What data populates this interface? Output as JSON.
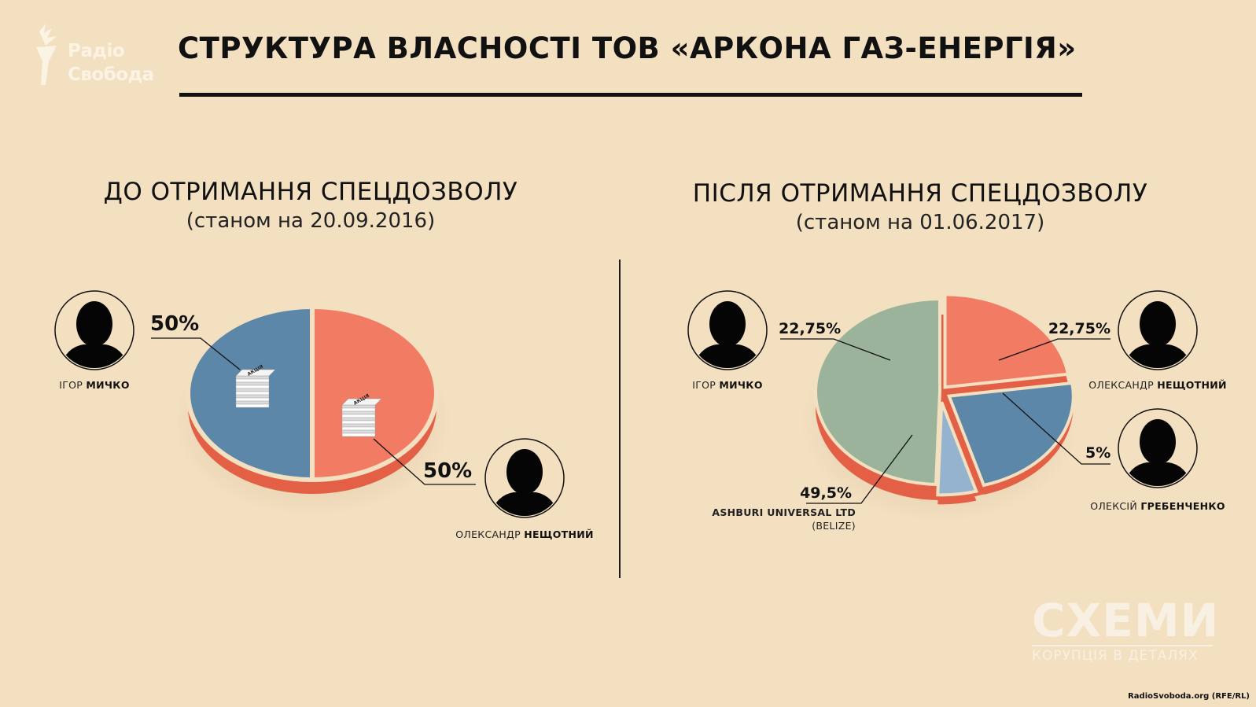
{
  "logo": {
    "line1": "Радіо",
    "line2": "Свобода"
  },
  "title": "СТРУКТУРА ВЛАСНОСТІ ТОВ «АРКОНА ГАЗ-ЕНЕРГІЯ»",
  "sections": {
    "before": {
      "title": "ДО ОТРИМАННЯ СПЕЦДОЗВОЛУ",
      "subtitle": "(станом на 20.09.2016)"
    },
    "after": {
      "title": "ПІСЛЯ ОТРИМАННЯ СПЕЦДОЗВОЛУ",
      "subtitle": "(станом на 01.06.2017)"
    }
  },
  "people": {
    "mychko_first": "ІГОР",
    "mychko_last": "МИЧКО",
    "neshchotnyi_first": "ОЛЕКСАНДР",
    "neshchotnyi_last": "НЕЩОТНИЙ",
    "hrebenchenko_first": "ОЛЕКСІЙ",
    "hrebenchenko_last": "ГРЕБЕНЧЕНКО",
    "ashburi": "ASHBURI UNIVERSAL LTD",
    "ashburi_country": "(BELIZE)"
  },
  "share_icon_text": "АКЦІЯ",
  "chart_data": [
    {
      "type": "pie",
      "title": "ДО ОТРИМАННЯ СПЕЦДОЗВОЛУ",
      "subtitle": "(станом на 20.09.2016)",
      "slices": [
        {
          "label": "ІГОР МИЧКО",
          "value": 50,
          "display": "50%",
          "color": "#f27b63"
        },
        {
          "label": "ОЛЕКСАНДР НЕЩОТНИЙ",
          "value": 50,
          "display": "50%",
          "color": "#5d87a8"
        }
      ]
    },
    {
      "type": "pie",
      "title": "ПІСЛЯ ОТРИМАННЯ СПЕЦДОЗВОЛУ",
      "subtitle": "(станом на 01.06.2017)",
      "slices": [
        {
          "label": "ІГОР МИЧКО",
          "value": 22.75,
          "display": "22,75%",
          "color": "#f27b63"
        },
        {
          "label": "ОЛЕКСАНДР НЕЩОТНИЙ",
          "value": 22.75,
          "display": "22,75%",
          "color": "#5d87a8"
        },
        {
          "label": "ОЛЕКСІЙ ГРЕБЕНЧЕНКО",
          "value": 5,
          "display": "5%",
          "color": "#93b3cf"
        },
        {
          "label": "ASHBURI UNIVERSAL LTD (BELIZE)",
          "value": 49.5,
          "display": "49,5%",
          "color": "#9ab39a"
        }
      ]
    }
  ],
  "watermark": {
    "big": "СХЕМИ",
    "small": "КОРУПЦІЯ В ДЕТАЛЯХ"
  },
  "credit": "RadioSvoboda.org (RFE/RL)",
  "colors": {
    "background": "#f3e0c1",
    "edge": "#e35f45"
  }
}
